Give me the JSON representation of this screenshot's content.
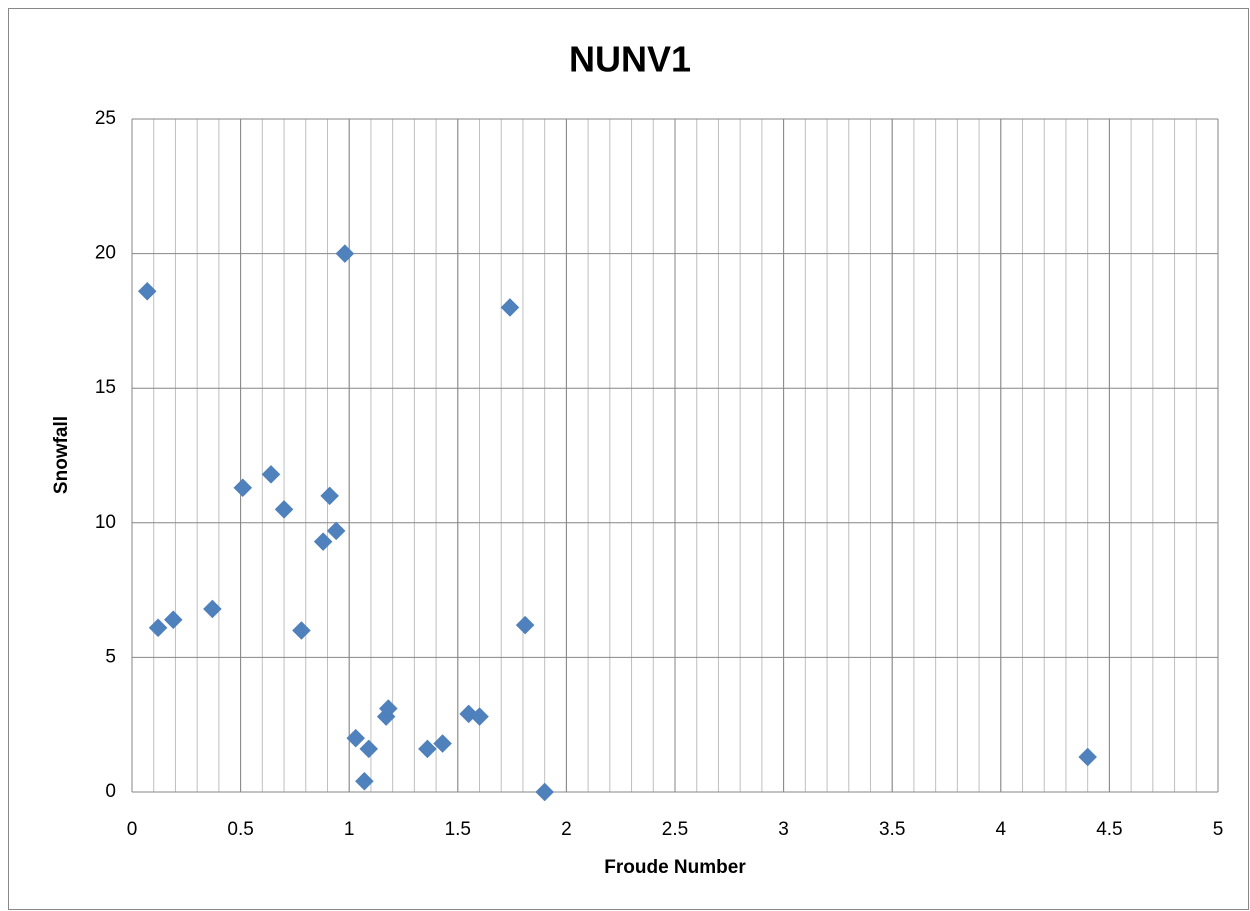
{
  "chart_data": {
    "type": "scatter",
    "title": "NUNV1",
    "x_label": "Froude Number",
    "y_label": "Snowfall",
    "xlim": [
      0,
      5
    ],
    "ylim": [
      0,
      25
    ],
    "xticks": [
      0,
      0.5,
      1,
      1.5,
      2,
      2.5,
      3,
      3.5,
      4,
      4.5,
      5
    ],
    "yticks": [
      0,
      5,
      10,
      15,
      20,
      25
    ],
    "grid": true,
    "x_minor_grid_step": 0.1,
    "series": [
      {
        "color": "#4f81bd",
        "x": [
          0.07,
          0.12,
          0.19,
          0.37,
          0.51,
          0.64,
          0.7,
          0.78,
          0.88,
          0.91,
          0.94,
          0.98,
          1.03,
          1.07,
          1.09,
          1.17,
          1.18,
          1.36,
          1.43,
          1.55,
          1.6,
          1.74,
          1.81,
          1.9,
          4.4
        ],
        "values": [
          18.6,
          6.1,
          6.4,
          6.8,
          11.3,
          11.8,
          10.5,
          6.0,
          9.3,
          11.0,
          9.7,
          20.0,
          2.0,
          0.4,
          1.6,
          2.8,
          3.1,
          1.6,
          1.8,
          2.9,
          2.8,
          18.0,
          6.2,
          0.0,
          1.3
        ]
      }
    ]
  }
}
